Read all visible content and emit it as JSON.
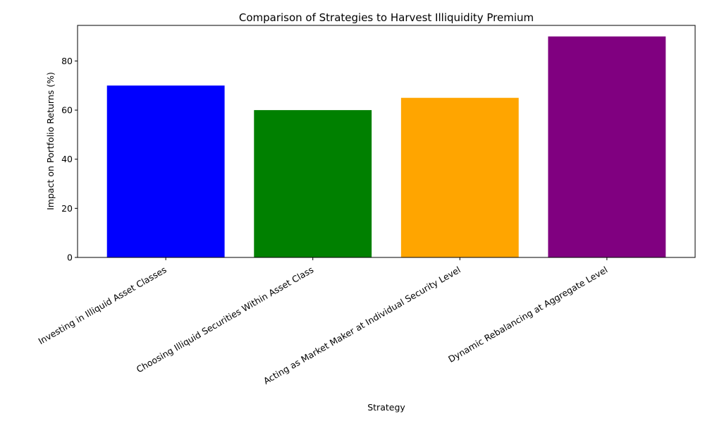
{
  "chart_data": {
    "type": "bar",
    "title": "Comparison of Strategies to Harvest Illiquidity Premium",
    "xlabel": "Strategy",
    "ylabel": "Impact on Portfolio Returns (%)",
    "categories": [
      "Investing in Illiquid Asset Classes",
      "Choosing Illiquid Securities Within Asset Class",
      "Acting as Market Maker at Individual Security Level",
      "Dynamic Rebalancing at Aggregate Level"
    ],
    "values": [
      70,
      60,
      65,
      90
    ],
    "colors": [
      "#0000ff",
      "#008000",
      "#ffa500",
      "#800080"
    ],
    "ylim": [
      0,
      94.5
    ],
    "yticks": [
      0,
      20,
      40,
      60,
      80
    ],
    "grid": false,
    "legend": "none"
  }
}
